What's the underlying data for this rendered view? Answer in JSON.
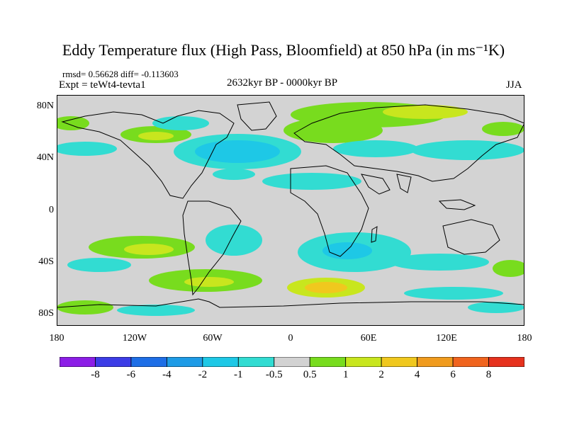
{
  "title": "Eddy Temperature flux (High Pass, Bloomfield) at 850 hPa (in ms⁻¹K)",
  "stats": "rmsd= 0.56628 diff= -0.113603",
  "experiment": "Expt = teWt4-tevta1",
  "period": "2632kyr BP - 0000kyr BP",
  "season": "JJA",
  "axes": {
    "y_ticks": [
      "80N",
      "40N",
      "0",
      "40S",
      "80S"
    ],
    "x_ticks": [
      "180",
      "120W",
      "60W",
      "0",
      "60E",
      "120E",
      "180"
    ]
  },
  "colorbar": {
    "labels": [
      "-8",
      "-6",
      "-4",
      "-2",
      "-1",
      "-0.5",
      "0.5",
      "1",
      "2",
      "4",
      "6",
      "8"
    ],
    "colors": [
      "#8c1ee6",
      "#3c3ce6",
      "#1e6ee6",
      "#1e9be6",
      "#1ec8e6",
      "#32dcd2",
      "#d2d2d2",
      "#78dc1e",
      "#c8e61e",
      "#f0c81e",
      "#f09b1e",
      "#f0641e",
      "#e6321e"
    ]
  },
  "colors": {
    "background": "#d3d3d3",
    "coast": "#000000"
  }
}
